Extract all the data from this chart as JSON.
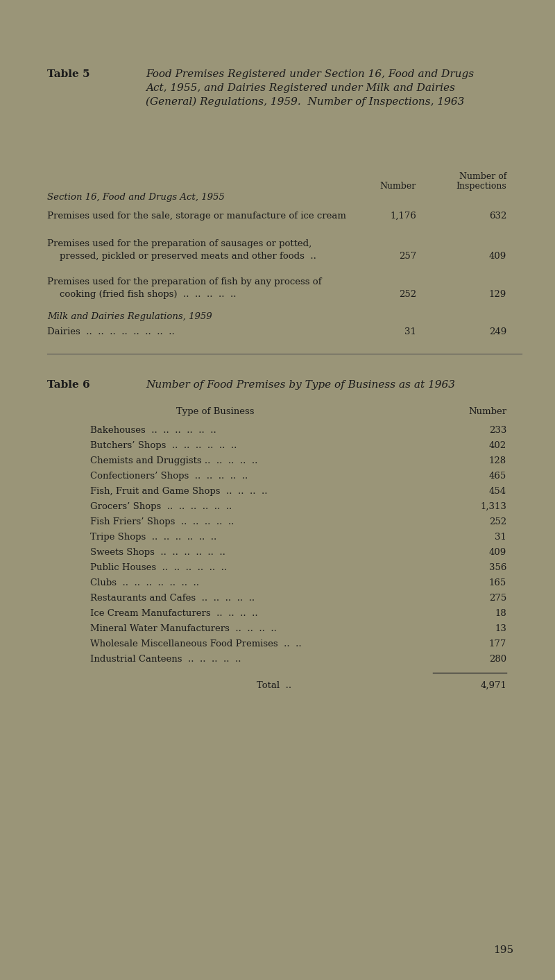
{
  "bg_color": "#9a9578",
  "text_color": "#1a1a1a",
  "page_number": "195",
  "table5": {
    "title5_bold": "Table 5",
    "title5_italic_lines": [
      "Food Premises Registered under Section 16, Food and Drugs",
      "Act, 1955, and Dairies Registered under Milk and Dairies",
      "(General) Regulations, 1959.  Number of Inspections, 1963"
    ],
    "col_header_number": "Number",
    "col_header_of": "Number of",
    "col_header_insp": "Inspections",
    "section1_heading": "Section 16, Food and Drugs Act, 1955",
    "row1_label": "Premises used for the sale, storage or manufacture of ice cream",
    "row1_num": "1,176",
    "row1_insp": "632",
    "row2_label1": "Premises used for the preparation of sausages or potted,",
    "row2_label2": "pressed, pickled or preserved meats and other foods  ..",
    "row2_num": "257",
    "row2_insp": "409",
    "row3_label1": "Premises used for the preparation of fish by any process of",
    "row3_label2": "cooking (fried fish shops)  ..  ..  ..  ..  ..",
    "row3_num": "252",
    "row3_insp": "129",
    "section2_heading": "Milk and Dairies Regulations, 1959",
    "dairies_label": "Dairies  ..  ..  ..  ..  ..  ..  ..  ..",
    "dairies_num": "31",
    "dairies_insp": "249"
  },
  "table6": {
    "title6_bold": "Table 6",
    "title6_italic": "Number of Food Premises by Type of Business as at 1963",
    "col_type": "Type of Business",
    "col_number": "Number",
    "rows": [
      {
        "type": "Bakehouses  ..  ..  ..  ..  ..  ..",
        "number": "233"
      },
      {
        "type": "Butchers’ Shops  ..  ..  ..  ..  ..  ..",
        "number": "402"
      },
      {
        "type": "Chemists and Druggists ..  ..  ..  ..  ..",
        "number": "128"
      },
      {
        "type": "Confectioners’ Shops  ..  ..  ..  ..  ..",
        "number": "465"
      },
      {
        "type": "Fish, Fruit and Game Shops  ..  ..  ..  ..",
        "number": "454"
      },
      {
        "type": "Grocers’ Shops  ..  ..  ..  ..  ..  ..",
        "number": "1,313"
      },
      {
        "type": "Fish Friers’ Shops  ..  ..  ..  ..  ..",
        "number": "252"
      },
      {
        "type": "Tripe Shops  ..  ..  ..  ..  ..  ..",
        "number": "31"
      },
      {
        "type": "Sweets Shops  ..  ..  ..  ..  ..  ..",
        "number": "409"
      },
      {
        "type": "Public Houses  ..  ..  ..  ..  ..  ..",
        "number": "356"
      },
      {
        "type": "Clubs  ..  ..  ..  ..  ..  ..  ..",
        "number": "165"
      },
      {
        "type": "Restaurants and Cafes  ..  ..  ..  ..  ..",
        "number": "275"
      },
      {
        "type": "Ice Cream Manufacturers  ..  ..  ..  ..",
        "number": "18"
      },
      {
        "type": "Mineral Water Manufacturers  ..  ..  ..  ..",
        "number": "13"
      },
      {
        "type": "Wholesale Miscellaneous Food Premises  ..  ..",
        "number": "177"
      },
      {
        "type": "Industrial Canteens  ..  ..  ..  ..  ..",
        "number": "280"
      }
    ],
    "total_label": "Total  ..",
    "total_value": "4,971"
  }
}
